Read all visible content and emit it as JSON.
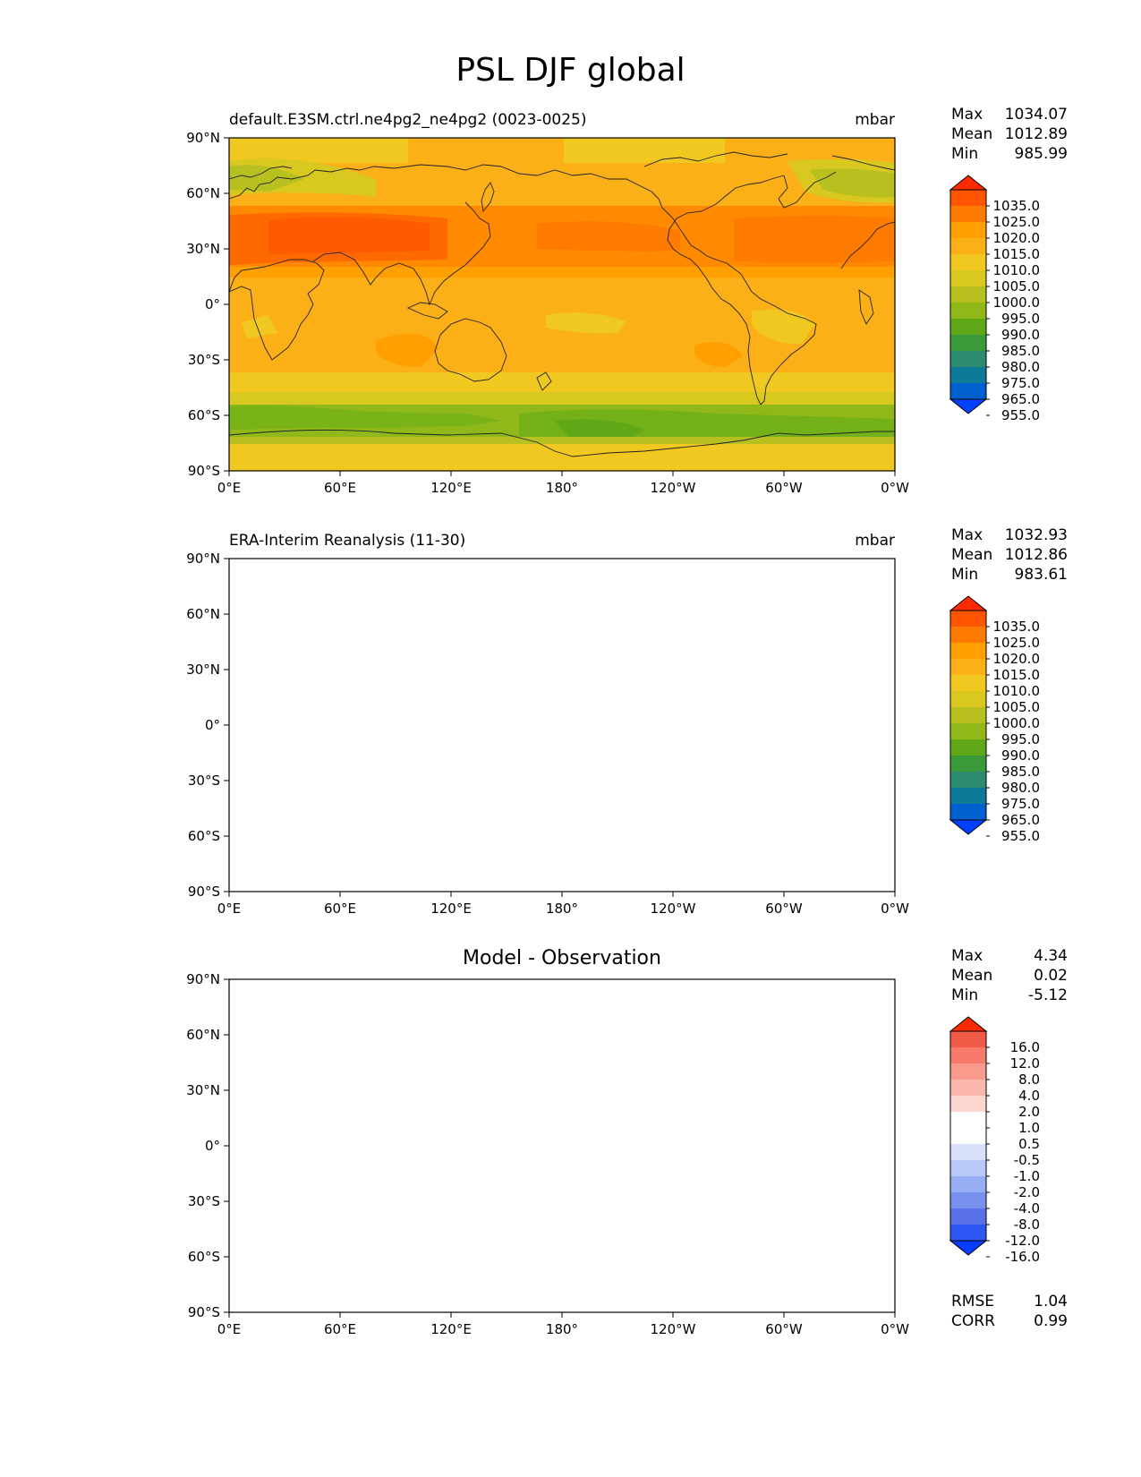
{
  "figure": {
    "title": "PSL DJF global"
  },
  "axes": {
    "lon_ticks": [
      "0°E",
      "60°E",
      "120°E",
      "180°",
      "120°W",
      "60°W",
      "0°W"
    ],
    "lat_ticks": [
      "90°N",
      "60°N",
      "30°N",
      "0°",
      "30°S",
      "60°S",
      "90°S"
    ]
  },
  "panels": [
    {
      "title_left": "default.E3SM.ctrl.ne4pg2_ne4pg2 (0023-0025)",
      "title_right": "mbar",
      "stats": [
        {
          "label": "Max",
          "value": "1034.07"
        },
        {
          "label": "Mean",
          "value": "1012.89"
        },
        {
          "label": "Min",
          "value": "985.99"
        }
      ],
      "colorbar_labels": [
        "1035.0",
        "1025.0",
        "1020.0",
        "1015.0",
        "1010.0",
        "1005.0",
        "1000.0",
        "995.0",
        "990.0",
        "985.0",
        "980.0",
        "975.0",
        "965.0",
        "955.0"
      ]
    },
    {
      "title_left": "ERA-Interim Reanalysis (11-30)",
      "title_right": "mbar",
      "stats": [
        {
          "label": "Max",
          "value": "1032.93"
        },
        {
          "label": "Mean",
          "value": "1012.86"
        },
        {
          "label": "Min",
          "value": "983.61"
        }
      ],
      "colorbar_labels": [
        "1035.0",
        "1025.0",
        "1020.0",
        "1015.0",
        "1010.0",
        "1005.0",
        "1000.0",
        "995.0",
        "990.0",
        "985.0",
        "980.0",
        "975.0",
        "965.0",
        "955.0"
      ]
    },
    {
      "title_center": "Model - Observation",
      "stats": [
        {
          "label": "Max",
          "value": "4.34"
        },
        {
          "label": "Mean",
          "value": "0.02"
        },
        {
          "label": "Min",
          "value": "-5.12"
        }
      ],
      "colorbar_labels": [
        "16.0",
        "12.0",
        "8.0",
        "4.0",
        "2.0",
        "1.0",
        "0.5",
        "-0.5",
        "-1.0",
        "-2.0",
        "-4.0",
        "-8.0",
        "-12.0",
        "-16.0"
      ],
      "metrics": [
        {
          "label": "RMSE",
          "value": "1.04"
        },
        {
          "label": "CORR",
          "value": "0.99"
        }
      ]
    }
  ],
  "colors": {
    "abs_scale_top_to_bottom": [
      "#ff2a00",
      "#ff5500",
      "#ff7b00",
      "#ffa000",
      "#fbb018",
      "#f0c820",
      "#d8c820",
      "#b8c020",
      "#90b818",
      "#60a818",
      "#3a9a3a",
      "#2e8a6e",
      "#0e7a9a",
      "#0060d0",
      "#0040ff"
    ],
    "diff_scale_top_to_bottom": [
      "#ff2a00",
      "#f25a48",
      "#f97a6a",
      "#fa9a8c",
      "#fdb8ae",
      "#fdd6d0",
      "#ffffff",
      "#ffffff",
      "#d8e0fa",
      "#b8c8f8",
      "#98aef4",
      "#7890ee",
      "#5870ea",
      "#2e58f4",
      "#0a3cff"
    ]
  }
}
